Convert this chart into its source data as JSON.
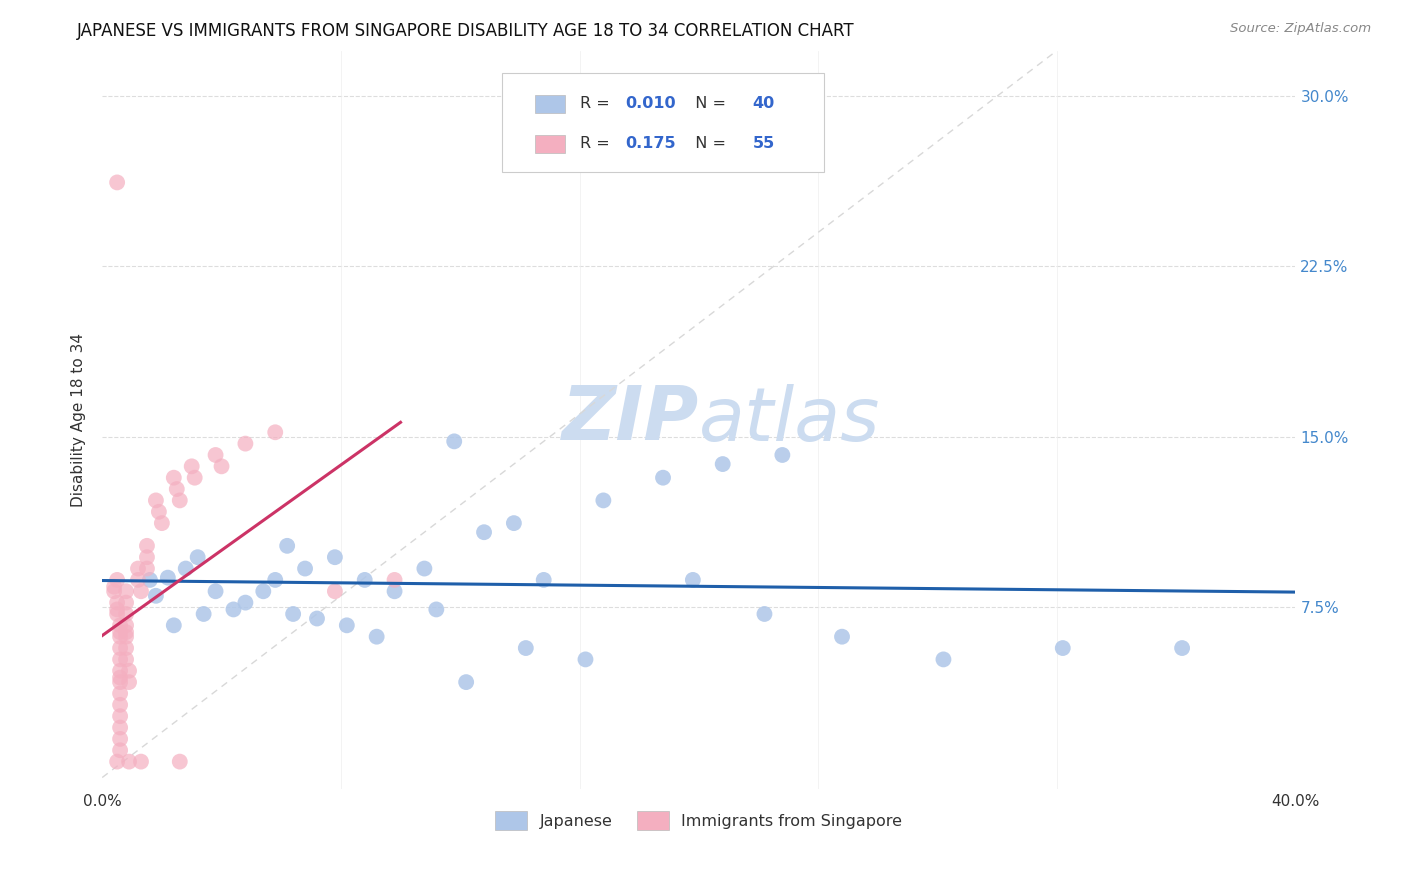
{
  "title": "JAPANESE VS IMMIGRANTS FROM SINGAPORE DISABILITY AGE 18 TO 34 CORRELATION CHART",
  "source": "Source: ZipAtlas.com",
  "ylabel": "Disability Age 18 to 34",
  "ytick_labels": [
    "7.5%",
    "15.0%",
    "22.5%",
    "30.0%"
  ],
  "ytick_values": [
    0.075,
    0.15,
    0.225,
    0.3
  ],
  "xlim": [
    0.0,
    0.4
  ],
  "ylim": [
    -0.005,
    0.32
  ],
  "legend_blue_R": "0.010",
  "legend_blue_N": "40",
  "legend_pink_R": "0.175",
  "legend_pink_N": "55",
  "legend_label_blue": "Japanese",
  "legend_label_pink": "Immigrants from Singapore",
  "blue_color": "#aec6e8",
  "pink_color": "#f4afc0",
  "trendline_blue_color": "#1f5faa",
  "trendline_pink_color": "#cc3366",
  "diagonal_color": "#d8d8d8",
  "watermark_zip": "ZIP",
  "watermark_atlas": "atlas",
  "watermark_color": "#ccdcf0",
  "blue_x": [
    0.018,
    0.022,
    0.028,
    0.032,
    0.038,
    0.048,
    0.058,
    0.068,
    0.078,
    0.088,
    0.098,
    0.108,
    0.118,
    0.128,
    0.138,
    0.148,
    0.168,
    0.188,
    0.208,
    0.228,
    0.024,
    0.034,
    0.044,
    0.054,
    0.064,
    0.072,
    0.082,
    0.092,
    0.112,
    0.122,
    0.142,
    0.162,
    0.198,
    0.222,
    0.248,
    0.282,
    0.322,
    0.362,
    0.016,
    0.062
  ],
  "blue_y": [
    0.08,
    0.088,
    0.092,
    0.097,
    0.082,
    0.077,
    0.087,
    0.092,
    0.097,
    0.087,
    0.082,
    0.092,
    0.148,
    0.108,
    0.112,
    0.087,
    0.122,
    0.132,
    0.138,
    0.142,
    0.067,
    0.072,
    0.074,
    0.082,
    0.072,
    0.07,
    0.067,
    0.062,
    0.074,
    0.042,
    0.057,
    0.052,
    0.087,
    0.072,
    0.062,
    0.052,
    0.057,
    0.057,
    0.087,
    0.102
  ],
  "pink_x": [
    0.004,
    0.004,
    0.005,
    0.005,
    0.005,
    0.005,
    0.006,
    0.006,
    0.006,
    0.006,
    0.006,
    0.006,
    0.006,
    0.006,
    0.006,
    0.006,
    0.006,
    0.006,
    0.006,
    0.006,
    0.008,
    0.008,
    0.008,
    0.008,
    0.008,
    0.008,
    0.008,
    0.008,
    0.009,
    0.009,
    0.012,
    0.012,
    0.013,
    0.015,
    0.015,
    0.015,
    0.018,
    0.019,
    0.02,
    0.024,
    0.025,
    0.026,
    0.03,
    0.031,
    0.038,
    0.04,
    0.048,
    0.058,
    0.078,
    0.098,
    0.005,
    0.005,
    0.009,
    0.013,
    0.026
  ],
  "pink_y": [
    0.082,
    0.084,
    0.087,
    0.077,
    0.074,
    0.072,
    0.067,
    0.064,
    0.062,
    0.057,
    0.052,
    0.047,
    0.044,
    0.042,
    0.037,
    0.032,
    0.027,
    0.022,
    0.017,
    0.012,
    0.082,
    0.077,
    0.072,
    0.067,
    0.064,
    0.062,
    0.057,
    0.052,
    0.047,
    0.042,
    0.092,
    0.087,
    0.082,
    0.102,
    0.097,
    0.092,
    0.122,
    0.117,
    0.112,
    0.132,
    0.127,
    0.122,
    0.137,
    0.132,
    0.142,
    0.137,
    0.147,
    0.152,
    0.082,
    0.087,
    0.262,
    0.007,
    0.007,
    0.007,
    0.007
  ]
}
